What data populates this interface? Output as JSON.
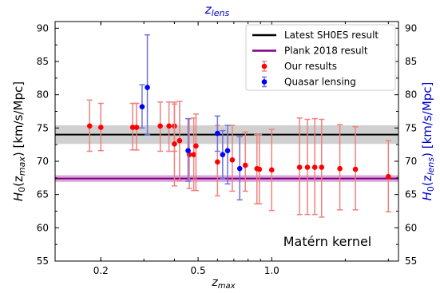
{
  "chart_data": {
    "type": "scatter",
    "x_scale": "log",
    "xlim": [
      0.13,
      3.3
    ],
    "ylim": [
      55,
      91
    ],
    "x_ticks": [
      {
        "value": 0.2,
        "label": "0.2"
      },
      {
        "value": 0.5,
        "label": "0.5"
      },
      {
        "value": 1.0,
        "label": "1.0"
      }
    ],
    "y_ticks": [
      55,
      60,
      65,
      70,
      75,
      80,
      85,
      90
    ],
    "y_tick_labels": [
      "55",
      "60",
      "65",
      "70",
      "75",
      "80",
      "85",
      "90"
    ],
    "xlabel": "z",
    "xlabel_sub": "max",
    "top_label": "z",
    "top_label_sub": "lens",
    "ylabel_left": "H",
    "ylabel_left_sub": "0",
    "ylabel_left_paren": "(z",
    "ylabel_left_paren_sub": "max",
    "ylabel_left_unit": ") [km/s/Mpc]",
    "ylabel_right": "H",
    "ylabel_right_sub": "0",
    "ylabel_right_paren": "(z",
    "ylabel_right_paren_sub": "lens",
    "ylabel_right_unit": ") [km/s/Mpc]",
    "annotation": "Matérn kernel",
    "grid": false,
    "legend_position": "top-right",
    "reference_lines": [
      {
        "name": "Latest SH0ES result",
        "value": 74.0,
        "band": [
          72.6,
          75.4
        ],
        "color": "#000000",
        "band_color": "#c8c8c8"
      },
      {
        "name": "Plank 2018 result",
        "value": 67.4,
        "band": [
          66.9,
          67.9
        ],
        "color": "#800080",
        "band_color": "#d49ad4"
      }
    ],
    "series": [
      {
        "name": "Our results",
        "color": "#ff0000",
        "err_color": "#f08080",
        "points": [
          {
            "x": 0.18,
            "y": 75.3,
            "lo": 71.5,
            "hi": 79.2
          },
          {
            "x": 0.2,
            "y": 75.1,
            "lo": 71.6,
            "hi": 78.7
          },
          {
            "x": 0.27,
            "y": 75.1,
            "lo": 71.7,
            "hi": 78.7
          },
          {
            "x": 0.28,
            "y": 75.1,
            "lo": 71.7,
            "hi": 78.7
          },
          {
            "x": 0.35,
            "y": 75.3,
            "lo": 71.5,
            "hi": 78.9
          },
          {
            "x": 0.38,
            "y": 75.3,
            "lo": 71.5,
            "hi": 78.9
          },
          {
            "x": 0.4,
            "y": 75.3,
            "lo": 71.5,
            "hi": 78.9
          },
          {
            "x": 0.4,
            "y": 72.6,
            "lo": 66.3,
            "hi": 78.6
          },
          {
            "x": 0.42,
            "y": 73.1,
            "lo": 67.1,
            "hi": 79.0
          },
          {
            "x": 0.46,
            "y": 71.0,
            "lo": 65.9,
            "hi": 76.4
          },
          {
            "x": 0.48,
            "y": 71.0,
            "lo": 65.6,
            "hi": 76.5
          },
          {
            "x": 0.49,
            "y": 72.3,
            "lo": 65.6,
            "hi": 77.1
          },
          {
            "x": 0.6,
            "y": 69.9,
            "lo": 64.8,
            "hi": 75.4
          },
          {
            "x": 0.69,
            "y": 70.2,
            "lo": 65.5,
            "hi": 75.4
          },
          {
            "x": 0.78,
            "y": 69.4,
            "lo": 65.5,
            "hi": 74.4
          },
          {
            "x": 0.87,
            "y": 68.9,
            "lo": 63.6,
            "hi": 74.0
          },
          {
            "x": 0.89,
            "y": 68.8,
            "lo": 63.6,
            "hi": 74.0
          },
          {
            "x": 1.0,
            "y": 68.7,
            "lo": 62.6,
            "hi": 74.8
          },
          {
            "x": 1.3,
            "y": 69.1,
            "lo": 62.0,
            "hi": 76.5
          },
          {
            "x": 1.4,
            "y": 69.1,
            "lo": 62.0,
            "hi": 76.3
          },
          {
            "x": 1.5,
            "y": 69.1,
            "lo": 62.0,
            "hi": 76.4
          },
          {
            "x": 1.6,
            "y": 69.1,
            "lo": 61.6,
            "hi": 76.3
          },
          {
            "x": 1.9,
            "y": 68.9,
            "lo": 62.7,
            "hi": 75.5
          },
          {
            "x": 2.2,
            "y": 68.8,
            "lo": 62.7,
            "hi": 75.2
          },
          {
            "x": 3.0,
            "y": 67.7,
            "lo": 62.4,
            "hi": 73.1
          }
        ]
      },
      {
        "name": "Quasar lensing",
        "color": "#0000ff",
        "err_color": "#7070e0",
        "points": [
          {
            "x": 0.295,
            "y": 78.2,
            "lo": 75.0,
            "hi": 81.5
          },
          {
            "x": 0.31,
            "y": 81.1,
            "lo": 74.0,
            "hi": 89.0
          },
          {
            "x": 0.455,
            "y": 71.6,
            "lo": 67.0,
            "hi": 76.4
          },
          {
            "x": 0.6,
            "y": 74.2,
            "lo": 71.5,
            "hi": 76.8
          },
          {
            "x": 0.63,
            "y": 71.0,
            "lo": 67.4,
            "hi": 74.6
          },
          {
            "x": 0.66,
            "y": 71.6,
            "lo": 66.6,
            "hi": 75.4
          },
          {
            "x": 0.74,
            "y": 68.9,
            "lo": 64.2,
            "hi": 73.7
          }
        ]
      }
    ]
  }
}
